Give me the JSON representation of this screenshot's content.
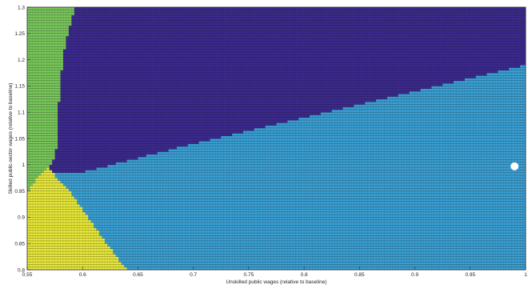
{
  "chart_data": {
    "type": "heatmap",
    "title": "",
    "xlabel": "Unskilled public wages (relative to baseline)",
    "ylabel": "Skilled public-sector wages (relative to baseline)",
    "xlim": [
      0.55,
      1.0
    ],
    "ylim": [
      0.8,
      1.3
    ],
    "grid": false,
    "xticks": [
      0.55,
      0.6,
      0.65,
      0.7,
      0.75,
      0.8,
      0.85,
      0.9,
      0.95,
      1.0
    ],
    "xtick_labels": [
      "0.55",
      "0.6",
      "0.65",
      "0.7",
      "0.75",
      "0.8",
      "0.85",
      "0.9",
      "0.95",
      "1"
    ],
    "yticks": [
      0.8,
      0.85,
      0.9,
      0.95,
      1.0,
      1.05,
      1.1,
      1.15,
      1.2,
      1.25,
      1.3
    ],
    "ytick_labels": [
      "0.8",
      "0.85",
      "0.9",
      "0.95",
      "1",
      "1.05",
      "1.1",
      "1.15",
      "1.2",
      "1.25",
      "1.3"
    ],
    "grid_resolution": {
      "x_step": 0.0025,
      "y_step": 0.005
    },
    "regions": [
      {
        "id": "green",
        "color": "#79c85b",
        "boundary_x_vs_y": [
          [
            0.8,
            0.5
          ],
          [
            0.985,
            0.563
          ],
          [
            1.0,
            0.572
          ],
          [
            1.02,
            0.576
          ],
          [
            1.1,
            0.578
          ],
          [
            1.2,
            0.582
          ],
          [
            1.25,
            0.587
          ],
          [
            1.3,
            0.593
          ]
        ]
      },
      {
        "id": "yellow",
        "color": "#e8e83a",
        "boundary_x_vs_y": [
          [
            0.8,
            0.64
          ],
          [
            0.85,
            0.622
          ],
          [
            0.9,
            0.605
          ],
          [
            0.95,
            0.588
          ],
          [
            0.98,
            0.575
          ],
          [
            1.0,
            0.568
          ],
          [
            1.02,
            0.56
          ],
          [
            1.05,
            0.55
          ]
        ]
      },
      {
        "id": "purple",
        "color": "#3c2a8f",
        "description_free": true,
        "boundary_y_vs_x": [
          [
            0.572,
            0.983
          ],
          [
            0.6,
            0.986
          ],
          [
            0.7,
            1.04
          ],
          [
            0.8,
            1.09
          ],
          [
            0.9,
            1.14
          ],
          [
            1.0,
            1.19
          ]
        ]
      },
      {
        "id": "blue",
        "color": "#3aa0d4"
      }
    ],
    "marker": {
      "x": 0.99,
      "y": 0.997,
      "color": "#ffffff"
    }
  }
}
